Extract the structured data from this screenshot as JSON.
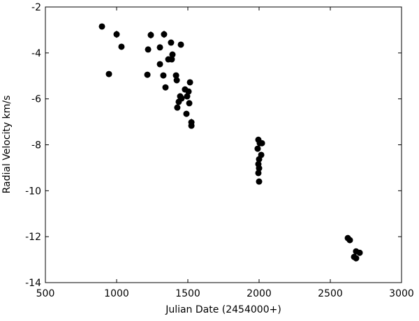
{
  "chart_data": {
    "type": "scatter",
    "xlabel": "Julian Date (2454000+)",
    "ylabel": "Radial Velocity km/s",
    "color": "#000000",
    "xlim": [
      500,
      3000
    ],
    "xticks": [
      500,
      1000,
      1500,
      2000,
      2500,
      3000
    ],
    "ylim": [
      -14,
      -2
    ],
    "yticks": [
      -14,
      -12,
      -10,
      -8,
      -6,
      -4,
      -2
    ],
    "grid": false,
    "x": [
      897,
      1000,
      1034,
      946,
      1240,
      1221,
      1216,
      1304,
      1304,
      1333,
      1328,
      1343,
      1382,
      1392,
      1363,
      1387,
      1451,
      1417,
      1422,
      1426,
      1436,
      1446,
      1456,
      1480,
      1495,
      1505,
      1515,
      1510,
      1490,
      1525,
      1525,
      1995,
      2005,
      2020,
      1990,
      2015,
      2000,
      1995,
      2000,
      1995,
      2000,
      2623,
      2637,
      2681,
      2706,
      2681,
      2667
    ],
    "values": [
      -2.85,
      -3.19,
      -3.73,
      -4.92,
      -3.22,
      -3.85,
      -4.95,
      -3.76,
      -4.49,
      -3.19,
      -4.98,
      -5.5,
      -3.55,
      -4.07,
      -4.28,
      -4.28,
      -3.64,
      -4.98,
      -5.19,
      -6.38,
      -6.13,
      -5.89,
      -5.98,
      -5.59,
      -5.89,
      -5.68,
      -5.28,
      -6.19,
      -6.65,
      -7.02,
      -7.17,
      -7.78,
      -7.93,
      -7.93,
      -8.17,
      -8.44,
      -8.63,
      -8.84,
      -9.02,
      -9.23,
      -9.6,
      -12.06,
      -12.15,
      -12.64,
      -12.7,
      -12.94,
      -12.88
    ],
    "errors": [
      0.1,
      0.15,
      0.1,
      0.1,
      0.15,
      0.1,
      0.1,
      0.1,
      0.1,
      0.15,
      0.1,
      0.1,
      0.1,
      0.1,
      0.1,
      0.1,
      0.12,
      0.1,
      0.1,
      0.1,
      0.1,
      0.1,
      0.1,
      0.1,
      0.1,
      0.1,
      0.12,
      0.1,
      0.1,
      0.15,
      0.1,
      0.1,
      0.1,
      0.1,
      0.1,
      0.1,
      0.1,
      0.1,
      0.1,
      0.1,
      0.1,
      0.1,
      0.1,
      0.1,
      0.1,
      0.1,
      0.1
    ]
  }
}
